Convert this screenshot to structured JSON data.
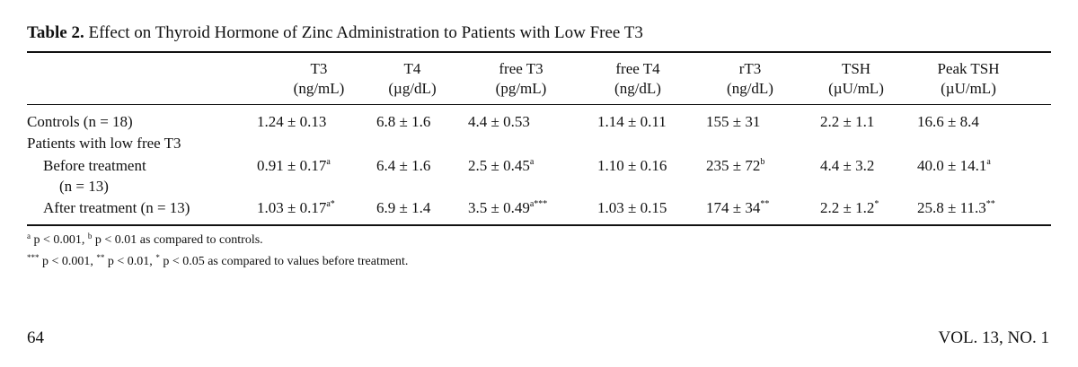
{
  "table": {
    "caption_label": "Table 2.",
    "caption_text": " Effect on Thyroid Hormone of Zinc Administration to Patients with Low Free T3",
    "headers": [
      {
        "name": "T3",
        "unit": "(ng/mL)"
      },
      {
        "name": "T4",
        "unit": "(µg/dL)"
      },
      {
        "name": "free T3",
        "unit": "(pg/mL)"
      },
      {
        "name": "free T4",
        "unit": "(ng/dL)"
      },
      {
        "name": "rT3",
        "unit": "(ng/dL)"
      },
      {
        "name": "TSH",
        "unit": "(µU/mL)"
      },
      {
        "name": "Peak TSH",
        "unit": "(µU/mL)"
      }
    ],
    "rows": [
      {
        "label": "Controls (n = 18)",
        "cells": [
          {
            "v": "1.24 ± 0.13",
            "s": ""
          },
          {
            "v": "6.8 ± 1.6",
            "s": ""
          },
          {
            "v": "4.4 ± 0.53",
            "s": ""
          },
          {
            "v": "1.14 ± 0.11",
            "s": ""
          },
          {
            "v": "155 ± 31",
            "s": ""
          },
          {
            "v": "2.2 ± 1.1",
            "s": ""
          },
          {
            "v": "16.6 ± 8.4",
            "s": ""
          }
        ]
      },
      {
        "label": "Patients with low free T3"
      },
      {
        "label": "Before treatment",
        "label2": "(n = 13)",
        "cells": [
          {
            "v": "0.91 ± 0.17",
            "s": "a"
          },
          {
            "v": "6.4 ± 1.6",
            "s": ""
          },
          {
            "v": "2.5 ± 0.45",
            "s": "a"
          },
          {
            "v": "1.10 ± 0.16",
            "s": ""
          },
          {
            "v": "235 ± 72",
            "s": "b"
          },
          {
            "v": "4.4 ± 3.2",
            "s": ""
          },
          {
            "v": "40.0 ± 14.1",
            "s": "a"
          }
        ]
      },
      {
        "label": "After treatment (n = 13)",
        "cells": [
          {
            "v": "1.03 ± 0.17",
            "s": "a*"
          },
          {
            "v": "6.9 ± 1.4",
            "s": ""
          },
          {
            "v": "3.5 ± 0.49",
            "s": "a***"
          },
          {
            "v": "1.03 ± 0.15",
            "s": ""
          },
          {
            "v": "174 ± 34",
            "s": "**"
          },
          {
            "v": "2.2 ± 1.2",
            "s": "*"
          },
          {
            "v": "25.8 ± 11.3",
            "s": "**"
          }
        ]
      }
    ],
    "footnote_1": {
      "m1": "a",
      "t1": " p < 0.001, ",
      "m2": "b",
      "t2": " p < 0.01 as compared to controls."
    },
    "footnote_2": {
      "m1": "***",
      "t1": " p < 0.001, ",
      "m2": "**",
      "t2": " p < 0.01, ",
      "m3": "*",
      "t3": " p < 0.05 as compared to values before treatment."
    }
  },
  "page": {
    "number": "64",
    "journal": "VOL. 13, NO. 1"
  }
}
